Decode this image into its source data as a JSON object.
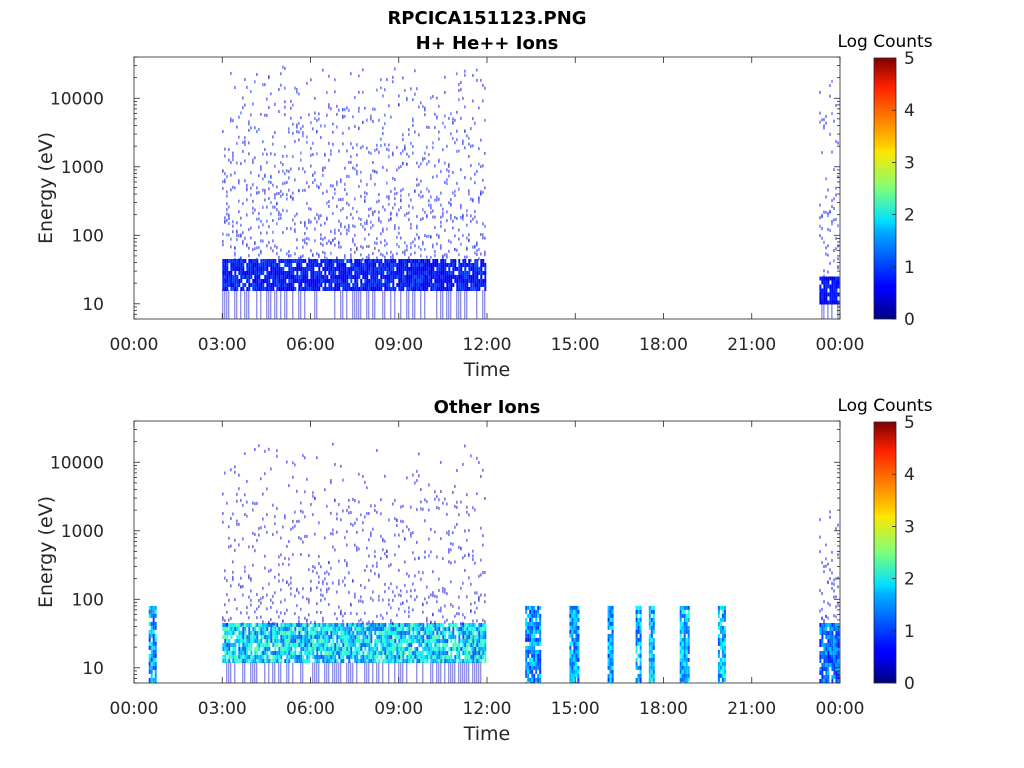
{
  "figure_title": "RPCICA151123.PNG",
  "chart_data": [
    {
      "type": "heatmap",
      "title": "H+ He++ Ions",
      "xlabel": "Time",
      "ylabel": "Energy (eV)",
      "x_ticks": [
        "00:00",
        "03:00",
        "06:00",
        "09:00",
        "12:00",
        "15:00",
        "18:00",
        "21:00",
        "00:00"
      ],
      "x_range_hours": [
        0,
        24
      ],
      "y_ticks": [
        10,
        100,
        1000,
        10000
      ],
      "y_range": [
        6,
        40000
      ],
      "y_scale": "log",
      "colorbar": {
        "label": "Log Counts",
        "ticks": [
          0,
          1,
          2,
          3,
          4,
          5
        ],
        "range": [
          0,
          5
        ],
        "colormap": "jet"
      },
      "segments": [
        {
          "t_start": 3.0,
          "t_end": 11.95,
          "low_band_energy": [
            16,
            45
          ],
          "low_band_level": 0.8,
          "sparse_max_energy": 35000,
          "sparse_density": 0.55,
          "sparse_level": 0.6
        },
        {
          "t_start": 23.3,
          "t_end": 23.95,
          "low_band_energy": [
            10,
            25
          ],
          "low_band_level": 0.7,
          "sparse_max_energy": 25000,
          "sparse_density": 0.5,
          "sparse_level": 0.6
        }
      ]
    },
    {
      "type": "heatmap",
      "title": "Other Ions",
      "xlabel": "Time",
      "ylabel": "Energy (eV)",
      "x_ticks": [
        "00:00",
        "03:00",
        "06:00",
        "09:00",
        "12:00",
        "15:00",
        "18:00",
        "21:00",
        "00:00"
      ],
      "x_range_hours": [
        0,
        24
      ],
      "y_ticks": [
        10,
        100,
        1000,
        10000
      ],
      "y_range": [
        6,
        40000
      ],
      "y_scale": "log",
      "colorbar": {
        "label": "Log Counts",
        "ticks": [
          0,
          1,
          2,
          3,
          4,
          5
        ],
        "range": [
          0,
          5
        ],
        "colormap": "jet"
      },
      "segments": [
        {
          "t_start": 0.5,
          "t_end": 0.75,
          "low_band_energy": [
            6,
            80
          ],
          "low_band_level": 1.6,
          "sparse_max_energy": 80,
          "sparse_density": 0.0,
          "sparse_level": 0.5
        },
        {
          "t_start": 3.0,
          "t_end": 11.95,
          "low_band_energy": [
            12,
            45
          ],
          "low_band_level": 1.9,
          "sparse_max_energy": 20000,
          "sparse_density": 0.35,
          "sparse_level": 0.5
        },
        {
          "t_start": 13.3,
          "t_end": 13.8,
          "low_band_energy": [
            6,
            80
          ],
          "low_band_level": 1.5,
          "sparse_max_energy": 80,
          "sparse_density": 0.0,
          "sparse_level": 0.5
        },
        {
          "t_start": 14.8,
          "t_end": 15.1,
          "low_band_energy": [
            6,
            80
          ],
          "low_band_level": 1.6,
          "sparse_max_energy": 80,
          "sparse_density": 0.0,
          "sparse_level": 0.5
        },
        {
          "t_start": 16.1,
          "t_end": 16.3,
          "low_band_energy": [
            6,
            80
          ],
          "low_band_level": 1.6,
          "sparse_max_energy": 80,
          "sparse_density": 0.0,
          "sparse_level": 0.5
        },
        {
          "t_start": 17.05,
          "t_end": 17.25,
          "low_band_energy": [
            6,
            80
          ],
          "low_band_level": 1.6,
          "sparse_max_energy": 80,
          "sparse_density": 0.0,
          "sparse_level": 0.5
        },
        {
          "t_start": 17.5,
          "t_end": 17.65,
          "low_band_energy": [
            6,
            80
          ],
          "low_band_level": 1.6,
          "sparse_max_energy": 80,
          "sparse_density": 0.0,
          "sparse_level": 0.5
        },
        {
          "t_start": 18.55,
          "t_end": 18.85,
          "low_band_energy": [
            6,
            80
          ],
          "low_band_level": 1.7,
          "sparse_max_energy": 80,
          "sparse_density": 0.0,
          "sparse_level": 0.5
        },
        {
          "t_start": 19.85,
          "t_end": 20.1,
          "low_band_energy": [
            6,
            80
          ],
          "low_band_level": 1.7,
          "sparse_max_energy": 80,
          "sparse_density": 0.0,
          "sparse_level": 0.5
        },
        {
          "t_start": 23.3,
          "t_end": 23.95,
          "low_band_energy": [
            6,
            45
          ],
          "low_band_level": 1.3,
          "sparse_max_energy": 3000,
          "sparse_density": 0.35,
          "sparse_level": 0.5
        }
      ]
    }
  ]
}
